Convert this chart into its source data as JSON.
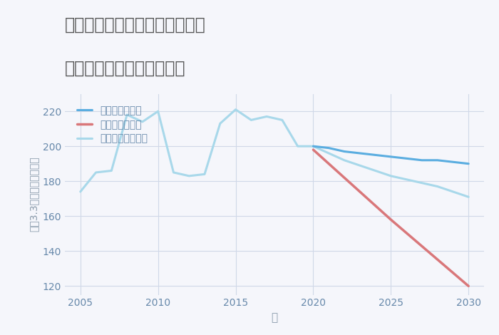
{
  "title_line1": "神奈川県横浜市緑区長津田町の",
  "title_line2": "中古マンションの価格推移",
  "xlabel": "年",
  "ylabel": "平（3.3㎡）単価（万円）",
  "good_scenario": {
    "label": "グッドシナリオ",
    "color": "#5aade0",
    "x": [
      2020,
      2021,
      2022,
      2023,
      2024,
      2025,
      2026,
      2027,
      2028,
      2029,
      2030
    ],
    "y": [
      200,
      199,
      197,
      196,
      195,
      194,
      193,
      192,
      192,
      191,
      190
    ]
  },
  "bad_scenario": {
    "label": "バッドシナリオ",
    "color": "#d9777a",
    "x": [
      2020,
      2025,
      2030
    ],
    "y": [
      198,
      158,
      120
    ]
  },
  "normal_scenario": {
    "label": "ノーマルシナリオ",
    "color": "#a8d8ea",
    "x": [
      2005,
      2006,
      2007,
      2008,
      2009,
      2010,
      2011,
      2012,
      2013,
      2014,
      2015,
      2016,
      2017,
      2018,
      2019,
      2020,
      2021,
      2022,
      2023,
      2024,
      2025,
      2026,
      2027,
      2028,
      2029,
      2030
    ],
    "y": [
      174,
      185,
      186,
      218,
      214,
      220,
      185,
      183,
      184,
      213,
      221,
      215,
      217,
      215,
      200,
      200,
      196,
      192,
      189,
      186,
      183,
      181,
      179,
      177,
      174,
      171
    ]
  },
  "ylim": [
    115,
    230
  ],
  "xlim": [
    2004,
    2031
  ],
  "yticks": [
    120,
    140,
    160,
    180,
    200,
    220
  ],
  "xticks": [
    2005,
    2010,
    2015,
    2020,
    2025,
    2030
  ],
  "bg_color": "#f5f6fb",
  "grid_color": "#d0d8e8",
  "title_color": "#555555",
  "axis_color": "#8899aa",
  "tick_color": "#6688aa",
  "linewidth_main": 2.2,
  "linewidth_bad": 2.5,
  "legend_label_color": "#6688aa"
}
